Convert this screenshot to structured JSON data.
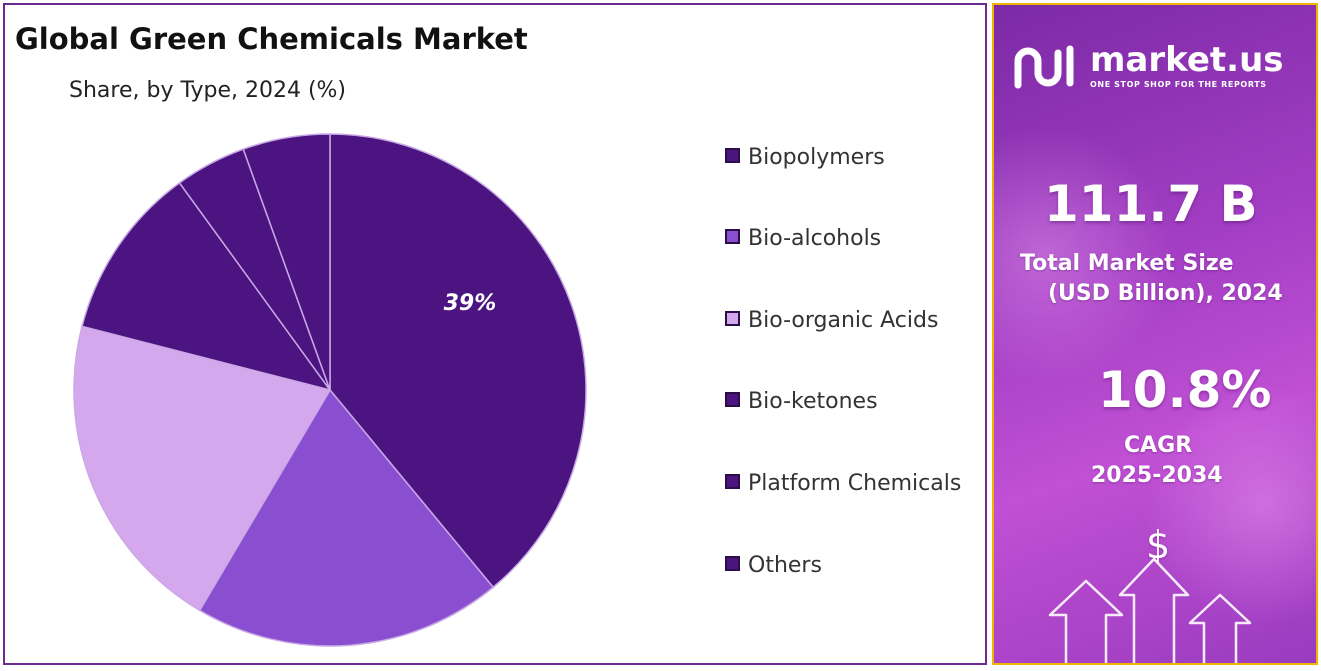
{
  "title": "Global Green Chemicals Market",
  "subtitle": "Share, by Type, 2024 (%)",
  "chart_data": {
    "type": "pie",
    "title": "Global Green Chemicals Market",
    "subtitle": "Share, by Type, 2024 (%)",
    "categories": [
      "Biopolymers",
      "Bio-alcohols",
      "Bio-organic Acids",
      "Bio-ketones",
      "Platform Chemicals",
      "Others"
    ],
    "values": [
      39,
      19.5,
      20.5,
      11,
      4.5,
      5.5
    ],
    "data_labels": [
      "39%",
      "",
      "",
      "",
      "",
      ""
    ],
    "colors": [
      "#4b1480",
      "#8a4fd1",
      "#d5a8ee",
      "#4b1480",
      "#4b1480",
      "#4b1480"
    ],
    "legend_placement": "right"
  },
  "legend": {
    "items": [
      {
        "label": "Biopolymers",
        "color": "#4b1480"
      },
      {
        "label": "Bio-alcohols",
        "color": "#8a4fd1"
      },
      {
        "label": "Bio-organic Acids",
        "color": "#d5a8ee"
      },
      {
        "label": "Bio-ketones",
        "color": "#4b1480"
      },
      {
        "label": "Platform Chemicals",
        "color": "#4b1480"
      },
      {
        "label": "Others",
        "color": "#4b1480"
      }
    ]
  },
  "sidebar": {
    "brand_name": "market.us",
    "brand_tagline": "ONE STOP SHOP FOR THE REPORTS",
    "market_size_value": "111.7 B",
    "market_size_label_1": "Total Market Size",
    "market_size_label_2": "(USD Billion), 2024",
    "cagr_value": "10.8%",
    "cagr_label": "CAGR",
    "cagr_period": "2025-2034",
    "dollar_symbol": "$",
    "icons": [
      "logo-icon",
      "dollar-icon",
      "arrow-up-icon"
    ],
    "accent_color": "#f0b400",
    "gradient_colors": [
      "#7c2aa6",
      "#c050d4"
    ]
  }
}
